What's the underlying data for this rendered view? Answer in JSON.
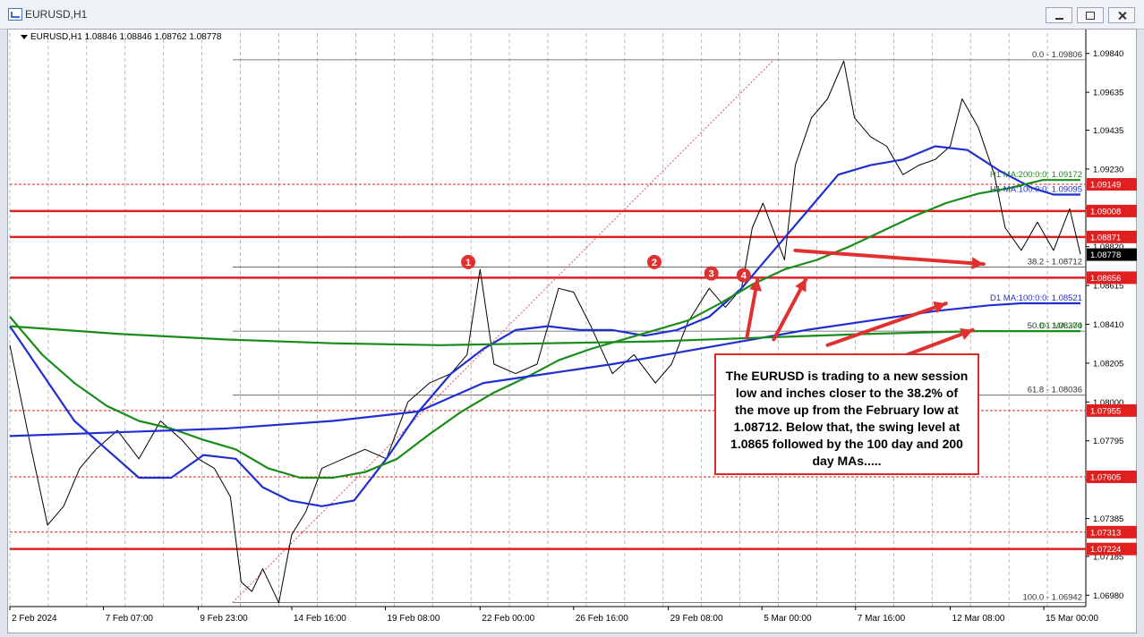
{
  "window": {
    "title": "EURUSD,H1"
  },
  "chart_header": {
    "symbol_line": "EURUSD,H1  1.08846 1.08846 1.08762 1.08778"
  },
  "annotation": {
    "text": "The EURUSD is trading to a new session low and inches closer to the 38.2% of the move up from the February low at 1.08712.  Below that, the swing level at 1.0865 followed by the 100 day and 200 day MAs.....",
    "color": "#d92b2b"
  },
  "chart_data": {
    "type": "line",
    "title": "",
    "ylim": [
      1.0692,
      1.099
    ],
    "y_tick_labels": [
      "1.09840",
      "1.09635",
      "1.09435",
      "1.09230",
      "1.09025",
      "1.08820",
      "1.08615",
      "1.08410",
      "1.08205",
      "1.08000",
      "1.07795",
      "1.07590",
      "1.07385",
      "1.07185",
      "1.06980"
    ],
    "y_ticks": [
      1.0984,
      1.09635,
      1.09435,
      1.0923,
      1.09025,
      1.0882,
      1.08615,
      1.0841,
      1.08205,
      1.08,
      1.07795,
      1.0759,
      1.07385,
      1.07185,
      1.0698
    ],
    "x_tick_labels": [
      "2 Feb 2024",
      "7 Feb 07:00",
      "9 Feb 23:00",
      "14 Feb 16:00",
      "19 Feb 08:00",
      "22 Feb 00:00",
      "26 Feb 16:00",
      "29 Feb 08:00",
      "5 Mar 00:00",
      "7 Mar 16:00",
      "12 Mar 08:00",
      "15 Mar 00:00"
    ],
    "x_tick_positions": [
      0.0,
      0.087,
      0.175,
      0.262,
      0.349,
      0.437,
      0.524,
      0.612,
      0.699,
      0.786,
      0.874,
      0.961
    ],
    "horizontal_levels": [
      {
        "value": 1.09149,
        "label": "1.09149",
        "color": "#e02020"
      },
      {
        "value": 1.09008,
        "label": "1.09008",
        "color": "#e02020"
      },
      {
        "value": 1.08871,
        "label": "1.08871",
        "color": "#e02020"
      },
      {
        "value": 1.08656,
        "label": "1.08656",
        "color": "#e02020"
      },
      {
        "value": 1.07955,
        "label": "1.07955",
        "color": "#e02020"
      },
      {
        "value": 1.07605,
        "label": "1.07605",
        "color": "#e02020"
      },
      {
        "value": 1.07313,
        "label": "1.07313",
        "color": "#e02020"
      },
      {
        "value": 1.07224,
        "label": "1.07224",
        "color": "#e02020"
      }
    ],
    "current_price": {
      "value": 1.08778,
      "label": "1.08778"
    },
    "fib_levels": [
      {
        "label": "0.0 - 1.09806",
        "value": 1.09806
      },
      {
        "label": "38.2 - 1.08712",
        "value": 1.08712
      },
      {
        "label": "50.0 - 1.08374",
        "value": 1.08374
      },
      {
        "label": "61.8 - 1.08036",
        "value": 1.08036
      },
      {
        "label": "100.0 - 1.06942",
        "value": 1.06942
      }
    ],
    "ma_labels": [
      {
        "label": "H1 MA:200:0:0: 1.09172",
        "value": 1.09172,
        "color": "#1a8c1a"
      },
      {
        "label": "H1 MA:100:0:0: 1.09095",
        "value": 1.09095,
        "color": "#1f2fd0"
      },
      {
        "label": "D1 MA:100:0:0: 1.08521",
        "value": 1.08521,
        "color": "#1f2fd0"
      },
      {
        "label": "D1 MA:200",
        "value": 1.08374,
        "color": "#1a8c1a"
      }
    ],
    "swing_markers": [
      {
        "label": "1",
        "x": 0.426,
        "y": 1.0872
      },
      {
        "label": "2",
        "x": 0.599,
        "y": 1.0872
      },
      {
        "label": "3",
        "x": 0.652,
        "y": 1.0866
      },
      {
        "label": "4",
        "x": 0.682,
        "y": 1.0865
      }
    ],
    "series": [
      {
        "color": "#000000",
        "points": [
          [
            0.0,
            1.083
          ],
          [
            0.02,
            1.0775
          ],
          [
            0.035,
            1.0735
          ],
          [
            0.05,
            1.0745
          ],
          [
            0.065,
            1.0765
          ],
          [
            0.08,
            1.0775
          ],
          [
            0.1,
            1.0785
          ],
          [
            0.12,
            1.077
          ],
          [
            0.14,
            1.079
          ],
          [
            0.16,
            1.078
          ],
          [
            0.175,
            1.077
          ],
          [
            0.19,
            1.0765
          ],
          [
            0.205,
            1.075
          ],
          [
            0.215,
            1.0705
          ],
          [
            0.225,
            1.07
          ],
          [
            0.235,
            1.0712
          ],
          [
            0.25,
            1.0694
          ],
          [
            0.262,
            1.073
          ],
          [
            0.275,
            1.0742
          ],
          [
            0.29,
            1.0765
          ],
          [
            0.31,
            1.077
          ],
          [
            0.33,
            1.0775
          ],
          [
            0.35,
            1.077
          ],
          [
            0.37,
            1.08
          ],
          [
            0.39,
            1.081
          ],
          [
            0.41,
            1.0815
          ],
          [
            0.425,
            1.0825
          ],
          [
            0.437,
            1.087
          ],
          [
            0.45,
            1.082
          ],
          [
            0.47,
            1.0815
          ],
          [
            0.49,
            1.082
          ],
          [
            0.51,
            1.086
          ],
          [
            0.524,
            1.0858
          ],
          [
            0.54,
            1.084
          ],
          [
            0.56,
            1.0815
          ],
          [
            0.58,
            1.0825
          ],
          [
            0.6,
            1.081
          ],
          [
            0.615,
            1.082
          ],
          [
            0.63,
            1.0842
          ],
          [
            0.65,
            1.086
          ],
          [
            0.665,
            1.085
          ],
          [
            0.68,
            1.086
          ],
          [
            0.69,
            1.0892
          ],
          [
            0.7,
            1.0905
          ],
          [
            0.71,
            1.089
          ],
          [
            0.72,
            1.0875
          ],
          [
            0.73,
            1.0925
          ],
          [
            0.745,
            1.095
          ],
          [
            0.76,
            1.096
          ],
          [
            0.775,
            1.098
          ],
          [
            0.785,
            1.095
          ],
          [
            0.8,
            1.094
          ],
          [
            0.815,
            1.0935
          ],
          [
            0.83,
            1.092
          ],
          [
            0.845,
            1.0925
          ],
          [
            0.86,
            1.0928
          ],
          [
            0.874,
            1.0935
          ],
          [
            0.885,
            1.096
          ],
          [
            0.9,
            1.0945
          ],
          [
            0.915,
            1.092
          ],
          [
            0.925,
            1.0892
          ],
          [
            0.94,
            1.088
          ],
          [
            0.955,
            1.0895
          ],
          [
            0.97,
            1.088
          ],
          [
            0.985,
            1.0902
          ],
          [
            0.995,
            1.0878
          ]
        ]
      },
      {
        "color": "#1f2fd0",
        "points": [
          [
            0.0,
            1.084
          ],
          [
            0.03,
            1.0815
          ],
          [
            0.06,
            1.079
          ],
          [
            0.09,
            1.0775
          ],
          [
            0.12,
            1.076
          ],
          [
            0.15,
            1.076
          ],
          [
            0.18,
            1.0772
          ],
          [
            0.21,
            1.077
          ],
          [
            0.235,
            1.0755
          ],
          [
            0.26,
            1.0748
          ],
          [
            0.29,
            1.0745
          ],
          [
            0.32,
            1.0748
          ],
          [
            0.35,
            1.077
          ],
          [
            0.38,
            1.0795
          ],
          [
            0.41,
            1.0815
          ],
          [
            0.44,
            1.0828
          ],
          [
            0.47,
            1.0838
          ],
          [
            0.5,
            1.084
          ],
          [
            0.53,
            1.0838
          ],
          [
            0.56,
            1.0838
          ],
          [
            0.59,
            1.0835
          ],
          [
            0.62,
            1.0838
          ],
          [
            0.65,
            1.0845
          ],
          [
            0.68,
            1.086
          ],
          [
            0.71,
            1.088
          ],
          [
            0.74,
            1.09
          ],
          [
            0.77,
            1.092
          ],
          [
            0.8,
            1.0925
          ],
          [
            0.83,
            1.0928
          ],
          [
            0.86,
            1.0935
          ],
          [
            0.89,
            1.0933
          ],
          [
            0.92,
            1.0922
          ],
          [
            0.95,
            1.0913
          ],
          [
            0.97,
            1.09095
          ],
          [
            0.995,
            1.09095
          ]
        ]
      },
      {
        "color": "#1a8c1a",
        "points": [
          [
            0.0,
            1.0845
          ],
          [
            0.03,
            1.0825
          ],
          [
            0.06,
            1.081
          ],
          [
            0.09,
            1.0798
          ],
          [
            0.12,
            1.079
          ],
          [
            0.15,
            1.0786
          ],
          [
            0.18,
            1.078
          ],
          [
            0.21,
            1.0775
          ],
          [
            0.24,
            1.0765
          ],
          [
            0.27,
            1.076
          ],
          [
            0.3,
            1.076
          ],
          [
            0.33,
            1.0763
          ],
          [
            0.36,
            1.077
          ],
          [
            0.39,
            1.0783
          ],
          [
            0.42,
            1.0795
          ],
          [
            0.45,
            1.0805
          ],
          [
            0.48,
            1.0813
          ],
          [
            0.51,
            1.0822
          ],
          [
            0.54,
            1.0828
          ],
          [
            0.57,
            1.0833
          ],
          [
            0.6,
            1.0838
          ],
          [
            0.63,
            1.0843
          ],
          [
            0.66,
            1.0852
          ],
          [
            0.69,
            1.0862
          ],
          [
            0.72,
            1.087
          ],
          [
            0.75,
            1.0875
          ],
          [
            0.78,
            1.0882
          ],
          [
            0.81,
            1.089
          ],
          [
            0.84,
            1.0898
          ],
          [
            0.87,
            1.0905
          ],
          [
            0.9,
            1.091
          ],
          [
            0.93,
            1.0913
          ],
          [
            0.96,
            1.09172
          ],
          [
            0.995,
            1.09172
          ]
        ]
      },
      {
        "color": "#1f2fd0",
        "points": [
          [
            0.0,
            1.0782
          ],
          [
            0.1,
            1.0784
          ],
          [
            0.2,
            1.0786
          ],
          [
            0.3,
            1.079
          ],
          [
            0.38,
            1.0795
          ],
          [
            0.44,
            1.081
          ],
          [
            0.5,
            1.0815
          ],
          [
            0.56,
            1.082
          ],
          [
            0.62,
            1.0826
          ],
          [
            0.68,
            1.0832
          ],
          [
            0.74,
            1.0838
          ],
          [
            0.8,
            1.0843
          ],
          [
            0.86,
            1.0848
          ],
          [
            0.91,
            1.0851
          ],
          [
            0.94,
            1.08521
          ],
          [
            0.995,
            1.08521
          ]
        ]
      },
      {
        "color": "#1a8c1a",
        "points": [
          [
            0.0,
            1.084
          ],
          [
            0.1,
            1.0836
          ],
          [
            0.2,
            1.0833
          ],
          [
            0.3,
            1.0831
          ],
          [
            0.4,
            1.083
          ],
          [
            0.5,
            1.0831
          ],
          [
            0.6,
            1.0832
          ],
          [
            0.7,
            1.0834
          ],
          [
            0.8,
            1.0836
          ],
          [
            0.9,
            1.08374
          ],
          [
            0.995,
            1.08374
          ]
        ]
      }
    ],
    "fib_line": {
      "x": [
        0.207,
        0.71
      ],
      "y": [
        1.06942,
        1.09806
      ]
    },
    "arrows": [
      {
        "from": [
          0.73,
          1.088
        ],
        "to": [
          0.905,
          1.08728
        ]
      },
      {
        "from": [
          0.685,
          1.0834
        ],
        "to": [
          0.695,
          1.0865
        ]
      },
      {
        "from": [
          0.71,
          1.0833
        ],
        "to": [
          0.74,
          1.0865
        ]
      },
      {
        "from": [
          0.76,
          1.083
        ],
        "to": [
          0.87,
          1.0852
        ]
      },
      {
        "from": [
          0.82,
          1.0822
        ],
        "to": [
          0.895,
          1.0838
        ]
      }
    ]
  }
}
